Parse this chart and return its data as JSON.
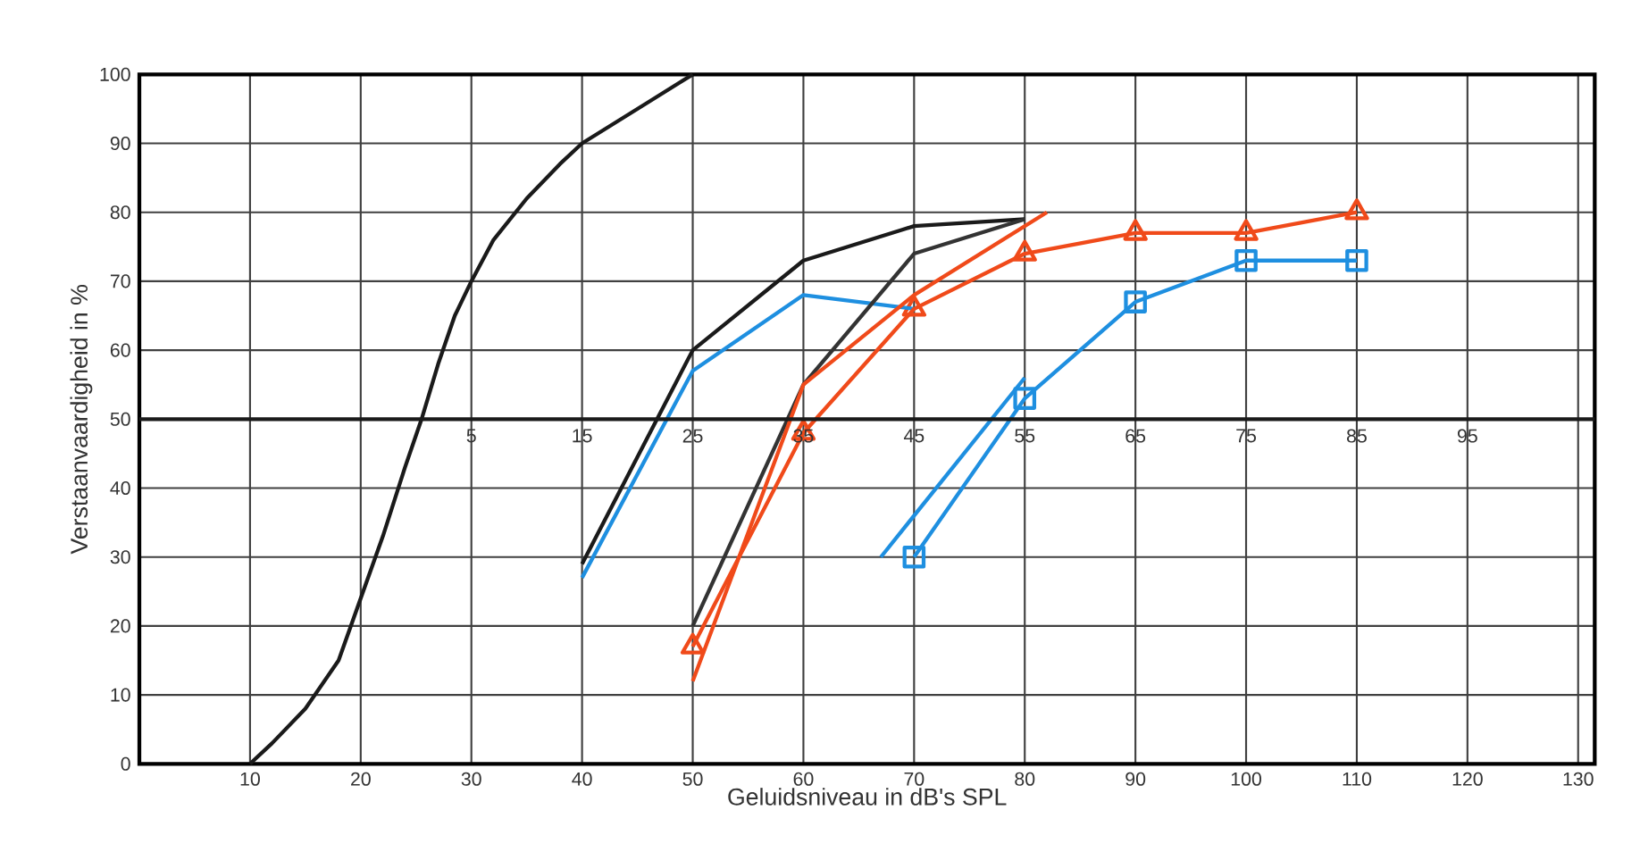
{
  "chart_data": {
    "type": "line",
    "xlabel": "Geluidsniveau in dB's SPL",
    "ylabel": "Verstaanvaardigheid in %",
    "xlim": [
      0,
      131.5
    ],
    "ylim": [
      0,
      100
    ],
    "xticks": [
      10,
      20,
      30,
      40,
      50,
      60,
      70,
      80,
      90,
      100,
      110,
      120,
      130
    ],
    "yticks": [
      0,
      10,
      20,
      30,
      40,
      50,
      60,
      70,
      80,
      90,
      100
    ],
    "grid": true,
    "ref_lines": [
      {
        "axis": "y",
        "value": 50,
        "color": "#1a1a1a"
      }
    ],
    "annotations": [
      {
        "text": "5",
        "x": 30,
        "y": 50
      },
      {
        "text": "15",
        "x": 40,
        "y": 50
      },
      {
        "text": "25",
        "x": 50,
        "y": 50
      },
      {
        "text": "35",
        "x": 60,
        "y": 50
      },
      {
        "text": "45",
        "x": 70,
        "y": 50
      },
      {
        "text": "55",
        "x": 80,
        "y": 50
      },
      {
        "text": "65",
        "x": 90,
        "y": 50
      },
      {
        "text": "75",
        "x": 100,
        "y": 50
      },
      {
        "text": "85",
        "x": 110,
        "y": 50
      },
      {
        "text": "95",
        "x": 120,
        "y": 50
      }
    ],
    "series": [
      {
        "color": "#1a1a1a",
        "marker": "none",
        "x": [
          10,
          12,
          15,
          18,
          20,
          22,
          24,
          25.5,
          27,
          28.5,
          30,
          32,
          35,
          38,
          40,
          43,
          46,
          50
        ],
        "values": [
          0,
          3,
          8,
          15,
          24,
          33,
          43,
          50,
          58,
          65,
          70,
          76,
          82,
          87,
          90,
          93,
          96,
          100
        ]
      },
      {
        "color": "#1a1a1a",
        "marker": "none",
        "x": [
          40,
          50,
          60,
          70,
          80
        ],
        "values": [
          29,
          60,
          73,
          78,
          79
        ]
      },
      {
        "color": "#1e8fe0",
        "marker": "none",
        "x": [
          40,
          50,
          60,
          70
        ],
        "values": [
          27,
          57,
          68,
          66
        ]
      },
      {
        "color": "#333333",
        "marker": "none",
        "x": [
          50,
          60,
          70,
          80
        ],
        "values": [
          20,
          55,
          74,
          79
        ]
      },
      {
        "color": "#f04a1a",
        "marker": "none",
        "x": [
          50,
          60,
          70,
          82
        ],
        "values": [
          12,
          55,
          68,
          80
        ]
      },
      {
        "color": "#f04a1a",
        "marker": "triangle",
        "x": [
          50,
          60,
          70,
          80,
          90,
          100,
          110
        ],
        "values": [
          17,
          48,
          66,
          74,
          77,
          77,
          80
        ]
      },
      {
        "color": "#1e8fe0",
        "marker": "none",
        "x": [
          67,
          80
        ],
        "values": [
          30,
          56
        ]
      },
      {
        "color": "#1e8fe0",
        "marker": "square",
        "x": [
          70,
          80,
          90,
          100,
          110
        ],
        "values": [
          30,
          53,
          67,
          73,
          73
        ]
      }
    ]
  }
}
